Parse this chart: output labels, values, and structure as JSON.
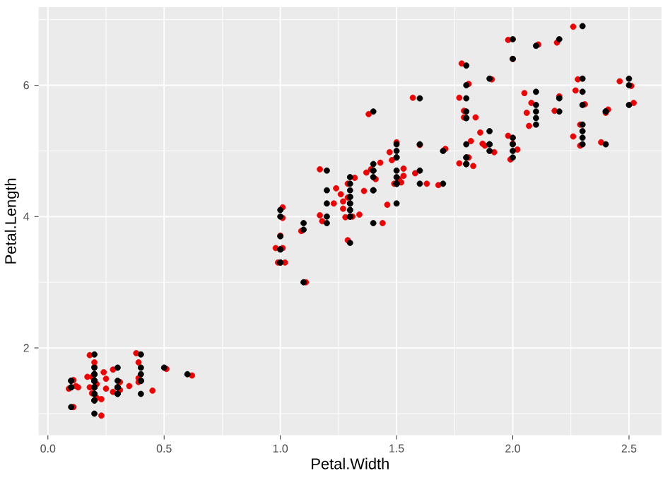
{
  "chart_data": {
    "type": "scatter",
    "xlabel": "Petal.Width",
    "ylabel": "Petal.Length",
    "xlim": [
      -0.04,
      2.64
    ],
    "ylim": [
      0.67,
      7.19
    ],
    "xticks": [
      {
        "value": 0,
        "label": "0.0"
      },
      {
        "value": 0.5,
        "label": "0.5"
      },
      {
        "value": 1,
        "label": "1.0"
      },
      {
        "value": 1.5,
        "label": "1.5"
      },
      {
        "value": 2,
        "label": "2.0"
      },
      {
        "value": 2.5,
        "label": "2.5"
      }
    ],
    "yticks": [
      2,
      4,
      6
    ],
    "grid": true,
    "marker": "circle",
    "series": [
      {
        "color": "#ee0000",
        "x": [
          0.09,
          0.11,
          0.12,
          0.11,
          0.18,
          0.13,
          0.19,
          0.18,
          0.19,
          0.2,
          0.21,
          0.21,
          0.23,
          0.23,
          0.24,
          0.25,
          0.25,
          0.28,
          0.28,
          0.31,
          0.35,
          0.38,
          0.39,
          0.39,
          0.39,
          0.45,
          0.51,
          0.62,
          0.17,
          0.2,
          0.31,
          0.98,
          1.01,
          1.0,
          0.99,
          1.02,
          1.01,
          1.01,
          1.11,
          1.09,
          1.17,
          1.17,
          1.18,
          1.23,
          1.24,
          1.26,
          1.27,
          1.27,
          1.29,
          1.28,
          1.29,
          1.29,
          1.31,
          1.32,
          1.34,
          1.36,
          1.37,
          1.38,
          1.39,
          1.41,
          1.43,
          1.44,
          1.46,
          1.47,
          1.48,
          1.5,
          1.49,
          1.51,
          1.52,
          1.53,
          1.53,
          1.57,
          1.58,
          1.6,
          1.63,
          1.68,
          1.71,
          1.77,
          1.78,
          1.77,
          1.79,
          1.79,
          1.81,
          1.82,
          1.81,
          1.83,
          1.84,
          1.86,
          1.87,
          1.88,
          1.91,
          1.92,
          1.98,
          1.98,
          1.99,
          2.0,
          2.0,
          2.02,
          2.05,
          2.06,
          2.07,
          2.08,
          2.11,
          2.18,
          2.19,
          2.2,
          2.26,
          2.26,
          2.27,
          2.28,
          2.29,
          2.29,
          2.31,
          2.38,
          2.4,
          2.41,
          2.46,
          2.51,
          2.52
        ],
        "values": [
          1.38,
          1.51,
          1.42,
          1.1,
          1.89,
          1.4,
          1.56,
          1.4,
          1.31,
          1.71,
          1.24,
          1.45,
          0.97,
          1.22,
          1.63,
          1.53,
          1.38,
          1.33,
          1.67,
          1.36,
          1.42,
          1.92,
          1.78,
          1.54,
          1.48,
          1.35,
          1.68,
          1.58,
          1.56,
          1.78,
          1.48,
          3.52,
          3.52,
          3.71,
          3.3,
          3.3,
          4.14,
          3.98,
          3.0,
          3.78,
          4.72,
          4.02,
          3.93,
          4.2,
          4.43,
          4.34,
          4.23,
          4.12,
          4.29,
          3.99,
          4.5,
          3.64,
          4.0,
          4.59,
          4.03,
          4.39,
          4.67,
          5.56,
          4.72,
          4.57,
          4.82,
          3.9,
          4.18,
          4.98,
          4.86,
          5.13,
          4.5,
          4.57,
          4.52,
          4.73,
          4.62,
          5.81,
          4.66,
          5.09,
          4.5,
          4.48,
          5.03,
          5.81,
          6.33,
          4.81,
          5.61,
          5.51,
          6.02,
          5.15,
          4.9,
          4.77,
          5.51,
          5.28,
          5.11,
          5.08,
          6.09,
          4.98,
          6.69,
          5.23,
          4.87,
          6.4,
          5.11,
          5.02,
          5.88,
          5.58,
          5.38,
          5.73,
          6.62,
          5.61,
          6.65,
          5.83,
          6.89,
          5.22,
          5.92,
          6.09,
          5.4,
          5.08,
          5.71,
          5.13,
          5.58,
          5.63,
          6.06,
          5.99,
          5.73
        ]
      },
      {
        "color": "#000000",
        "x": [
          0.2,
          0.2,
          0.2,
          0.2,
          0.2,
          0.4,
          0.3,
          0.2,
          0.2,
          0.1,
          0.2,
          0.2,
          0.1,
          0.1,
          0.2,
          0.4,
          0.4,
          0.3,
          0.3,
          0.3,
          0.2,
          0.4,
          0.2,
          0.5,
          0.2,
          0.2,
          0.4,
          0.2,
          0.2,
          0.2,
          0.2,
          0.4,
          0.1,
          0.2,
          0.2,
          0.2,
          0.2,
          0.1,
          0.2,
          0.2,
          0.3,
          0.3,
          0.2,
          0.6,
          0.4,
          0.3,
          0.2,
          0.2,
          0.2,
          0.2,
          1.4,
          1.5,
          1.5,
          1.3,
          1.5,
          1.3,
          1.6,
          1.0,
          1.3,
          1.4,
          1.0,
          1.5,
          1.0,
          1.4,
          1.3,
          1.4,
          1.5,
          1.0,
          1.5,
          1.1,
          1.8,
          1.3,
          1.5,
          1.2,
          1.3,
          1.4,
          1.4,
          1.7,
          1.5,
          1.0,
          1.1,
          1.0,
          1.2,
          1.6,
          1.5,
          1.6,
          1.5,
          1.3,
          1.3,
          1.3,
          1.2,
          1.4,
          1.2,
          1.0,
          1.3,
          1.2,
          1.3,
          1.3,
          1.1,
          1.3,
          2.5,
          1.9,
          2.1,
          1.8,
          2.2,
          2.1,
          1.7,
          1.8,
          1.8,
          2.5,
          2.0,
          1.9,
          2.1,
          2.0,
          2.4,
          2.3,
          1.8,
          2.2,
          2.3,
          1.5,
          2.3,
          2.0,
          2.0,
          1.8,
          2.1,
          1.8,
          1.8,
          1.8,
          2.1,
          1.6,
          1.9,
          2.0,
          2.2,
          1.5,
          1.4,
          2.3,
          2.4,
          1.8,
          1.8,
          2.1,
          2.4,
          2.3,
          1.9,
          2.3,
          2.5,
          2.3,
          1.9,
          2.0,
          2.3,
          1.8
        ],
        "values": [
          1.4,
          1.4,
          1.3,
          1.5,
          1.4,
          1.7,
          1.4,
          1.5,
          1.4,
          1.5,
          1.5,
          1.6,
          1.4,
          1.1,
          1.2,
          1.5,
          1.3,
          1.4,
          1.7,
          1.5,
          1.7,
          1.5,
          1.0,
          1.7,
          1.9,
          1.6,
          1.6,
          1.5,
          1.4,
          1.6,
          1.6,
          1.5,
          1.5,
          1.4,
          1.5,
          1.2,
          1.3,
          1.4,
          1.3,
          1.5,
          1.3,
          1.3,
          1.3,
          1.6,
          1.9,
          1.4,
          1.6,
          1.4,
          1.5,
          1.4,
          4.7,
          4.5,
          4.9,
          4.0,
          4.6,
          4.5,
          4.7,
          3.3,
          4.6,
          3.9,
          3.5,
          4.2,
          4.0,
          4.7,
          3.6,
          4.4,
          4.5,
          4.1,
          4.5,
          3.9,
          4.8,
          4.0,
          4.9,
          4.7,
          4.3,
          4.4,
          4.8,
          5.0,
          4.5,
          3.5,
          3.8,
          3.7,
          3.9,
          5.1,
          4.5,
          4.5,
          4.7,
          4.4,
          4.1,
          4.0,
          4.4,
          4.6,
          4.0,
          3.3,
          4.2,
          4.2,
          4.2,
          4.3,
          3.0,
          4.1,
          6.0,
          5.1,
          5.9,
          5.6,
          5.8,
          6.6,
          4.5,
          6.3,
          5.8,
          6.1,
          5.1,
          5.3,
          5.5,
          5.0,
          5.1,
          5.3,
          5.5,
          6.7,
          6.9,
          5.0,
          5.7,
          4.9,
          6.7,
          4.9,
          5.7,
          6.0,
          4.8,
          4.9,
          5.6,
          5.8,
          6.1,
          6.4,
          5.6,
          5.1,
          5.6,
          6.1,
          5.6,
          5.5,
          4.8,
          5.4,
          5.6,
          5.1,
          5.1,
          5.9,
          5.7,
          5.2,
          5.0,
          5.2,
          5.4,
          5.1
        ]
      }
    ]
  }
}
